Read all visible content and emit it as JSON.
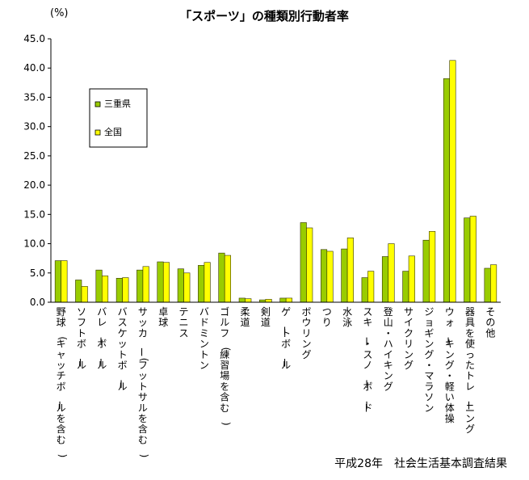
{
  "chart_data": {
    "type": "bar",
    "title": "「スポーツ」の種類別行動者率",
    "unit_label": "(%)",
    "ylim": [
      0,
      45
    ],
    "yticks": [
      "0.0",
      "5.0",
      "10.0",
      "15.0",
      "20.0",
      "25.0",
      "30.0",
      "35.0",
      "40.0",
      "45.0"
    ],
    "categories": [
      "野球(キャッチボールを含む)",
      "ソフトボール",
      "バレーボール",
      "バスケットボール",
      "サッカー(フットサルを含む)",
      "卓球",
      "テニス",
      "バドミントン",
      "ゴルフ(練習場を含む)",
      "柔道",
      "剣道",
      "ゲートボール",
      "ボウリング",
      "つり",
      "水泳",
      "スキー・スノーボード",
      "登山・ハイキング",
      "サイクリング",
      "ジョギング・マラソン",
      "ウォーキング・軽い体操",
      "器具を使ったトレーニング",
      "その他"
    ],
    "series": [
      {
        "name": "三重県",
        "color": "#99cc00",
        "values": [
          7.1,
          3.8,
          5.5,
          4.1,
          5.5,
          6.9,
          5.7,
          6.3,
          8.4,
          0.7,
          0.4,
          0.7,
          13.6,
          9.0,
          9.1,
          4.2,
          7.8,
          5.3,
          10.6,
          38.2,
          14.4,
          5.8
        ]
      },
      {
        "name": "全国",
        "color": "#ffff00",
        "values": [
          7.1,
          2.7,
          4.5,
          4.2,
          6.1,
          6.8,
          5.0,
          6.8,
          8.0,
          0.6,
          0.5,
          0.7,
          12.7,
          8.7,
          11.0,
          5.3,
          10.0,
          7.9,
          12.1,
          41.3,
          14.7,
          6.4
        ]
      }
    ],
    "legend_position": "upper-left inside plot",
    "grid": false,
    "source": "平成28年　社会生活基本調査結果"
  }
}
